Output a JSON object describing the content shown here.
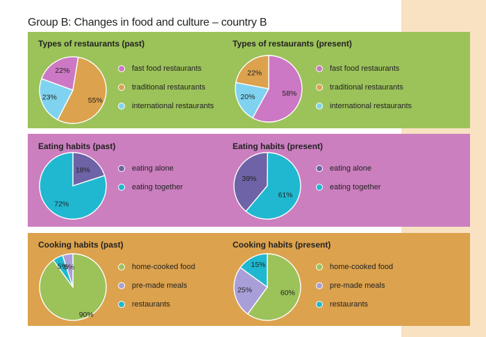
{
  "page": {
    "title": "Group B: Changes in food and culture – country B"
  },
  "colors": {
    "band_types": "#9cc25a",
    "band_eating": "#cb7fbf",
    "band_cooking": "#dca24d",
    "side_strip": "#f9e2c2"
  },
  "chart_data": [
    {
      "type": "pie",
      "title": "Types of restaurants (past)",
      "labels": [
        "fast food restaurants",
        "traditional restaurants",
        "international restaurants"
      ],
      "values": [
        22,
        55,
        23
      ],
      "value_labels": [
        "22%",
        "55%",
        "23%"
      ],
      "colors": [
        "#cc78c4",
        "#dca24d",
        "#7fd3f0"
      ]
    },
    {
      "type": "pie",
      "title": "Types of restaurants (present)",
      "labels": [
        "fast food restaurants",
        "traditional restaurants",
        "international restaurants"
      ],
      "values": [
        58,
        22,
        20
      ],
      "value_labels": [
        "58%",
        "22%",
        "20%"
      ],
      "colors": [
        "#cc78c4",
        "#dca24d",
        "#7fd3f0"
      ]
    },
    {
      "type": "pie",
      "title": "Eating habits (past)",
      "labels": [
        "eating alone",
        "eating together"
      ],
      "values": [
        18,
        72
      ],
      "value_labels": [
        "18%",
        "72%"
      ],
      "colors": [
        "#6e63a6",
        "#20b8d0"
      ]
    },
    {
      "type": "pie",
      "title": "Eating habits (present)",
      "labels": [
        "eating alone",
        "eating together"
      ],
      "values": [
        39,
        61
      ],
      "value_labels": [
        "39%",
        "61%"
      ],
      "colors": [
        "#6e63a6",
        "#20b8d0"
      ]
    },
    {
      "type": "pie",
      "title": "Cooking habits (past)",
      "labels": [
        "home-cooked food",
        "pre-made meals",
        "restaurants"
      ],
      "values": [
        90,
        5,
        5
      ],
      "value_labels": [
        "90%",
        "5%",
        "5%"
      ],
      "colors": [
        "#9cc25a",
        "#a99fd8",
        "#20b8d0"
      ]
    },
    {
      "type": "pie",
      "title": "Cooking habits (present)",
      "labels": [
        "home-cooked food",
        "pre-made meals",
        "restaurants"
      ],
      "values": [
        60,
        25,
        15
      ],
      "value_labels": [
        "60%",
        "25%",
        "15%"
      ],
      "colors": [
        "#9cc25a",
        "#a99fd8",
        "#20b8d0"
      ]
    }
  ]
}
